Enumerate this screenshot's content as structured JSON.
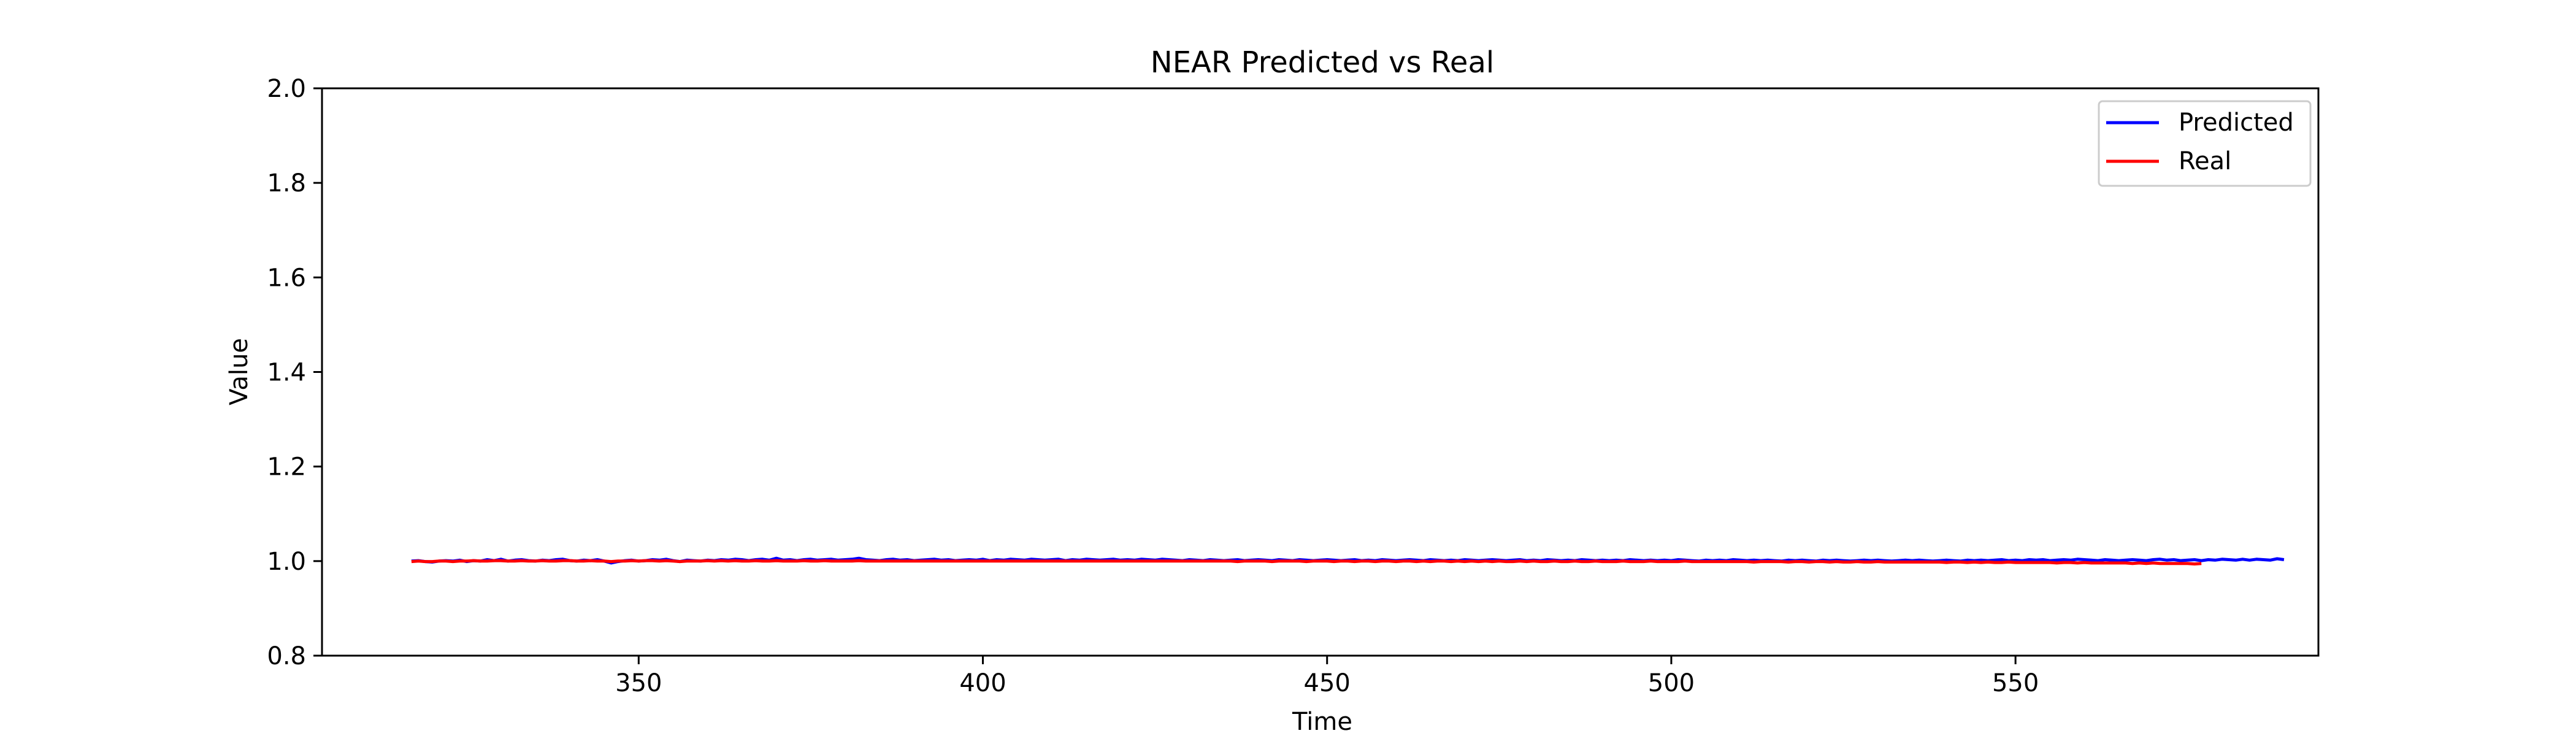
{
  "chart_data": {
    "type": "line",
    "title": "NEAR Predicted vs Real",
    "xlabel": "Time",
    "ylabel": "Value",
    "xlim": [
      304,
      594
    ],
    "ylim": [
      0.8,
      2.0
    ],
    "x_ticks": [
      350,
      400,
      450,
      500,
      550
    ],
    "y_ticks": [
      0.8,
      1.0,
      1.2,
      1.4,
      1.6,
      1.8,
      2.0
    ],
    "y_tick_labels": [
      "0.8",
      "1.0",
      "1.2",
      "1.4",
      "1.6",
      "1.8",
      "2.0"
    ],
    "x_tick_labels": [
      "350",
      "400",
      "450",
      "500",
      "550"
    ],
    "grid": false,
    "legend_position": "top-right",
    "x_range": {
      "start": 317,
      "end": 580,
      "step": 1
    },
    "series": [
      {
        "name": "Predicted",
        "color": "#0000ff",
        "values": [
          1.0,
          1.001,
          0.999,
          0.998,
          1.0,
          1.001,
          1.0,
          1.002,
          0.999,
          1.001,
          1.0,
          1.003,
          1.001,
          1.004,
          1.0,
          1.002,
          1.003,
          1.001,
          1.0,
          1.002,
          1.001,
          1.003,
          1.004,
          1.001,
          1.0,
          1.002,
          1.001,
          1.003,
          1.0,
          0.996,
          0.999,
          1.001,
          1.002,
          1.0,
          1.001,
          1.003,
          1.002,
          1.004,
          1.001,
          0.999,
          1.002,
          1.001,
          1.0,
          1.002,
          1.001,
          1.003,
          1.002,
          1.004,
          1.003,
          1.001,
          1.003,
          1.004,
          1.002,
          1.006,
          1.002,
          1.003,
          1.001,
          1.003,
          1.004,
          1.002,
          1.003,
          1.004,
          1.002,
          1.003,
          1.004,
          1.006,
          1.003,
          1.002,
          1.001,
          1.003,
          1.004,
          1.002,
          1.003,
          1.001,
          1.002,
          1.003,
          1.004,
          1.002,
          1.003,
          1.001,
          1.002,
          1.003,
          1.002,
          1.004,
          1.001,
          1.003,
          1.002,
          1.004,
          1.003,
          1.002,
          1.004,
          1.003,
          1.002,
          1.003,
          1.004,
          1.001,
          1.003,
          1.002,
          1.004,
          1.003,
          1.002,
          1.003,
          1.004,
          1.002,
          1.003,
          1.002,
          1.004,
          1.003,
          1.002,
          1.004,
          1.003,
          1.002,
          1.001,
          1.003,
          1.002,
          1.001,
          1.003,
          1.002,
          1.001,
          1.002,
          1.003,
          1.001,
          1.002,
          1.003,
          1.002,
          1.001,
          1.003,
          1.002,
          1.001,
          1.003,
          1.002,
          1.001,
          1.002,
          1.003,
          1.002,
          1.001,
          1.002,
          1.003,
          1.001,
          1.002,
          1.001,
          1.003,
          1.002,
          1.001,
          1.002,
          1.003,
          1.002,
          1.001,
          1.003,
          1.002,
          1.001,
          1.002,
          1.001,
          1.003,
          1.002,
          1.001,
          1.002,
          1.003,
          1.002,
          1.001,
          1.002,
          1.003,
          1.001,
          1.002,
          1.001,
          1.003,
          1.002,
          1.001,
          1.002,
          1.001,
          1.003,
          1.002,
          1.001,
          1.002,
          1.001,
          1.002,
          1.001,
          1.003,
          1.002,
          1.001,
          1.002,
          1.001,
          1.002,
          1.001,
          1.003,
          1.002,
          1.001,
          1.0,
          1.002,
          1.001,
          1.002,
          1.001,
          1.003,
          1.002,
          1.001,
          1.002,
          1.001,
          1.002,
          1.001,
          1.0,
          1.002,
          1.001,
          1.002,
          1.001,
          1.0,
          1.002,
          1.001,
          1.002,
          1.001,
          1.0,
          1.001,
          1.002,
          1.001,
          1.002,
          1.001,
          1.0,
          1.001,
          1.002,
          1.001,
          1.002,
          1.001,
          1.0,
          1.001,
          1.002,
          1.001,
          1.0,
          1.002,
          1.001,
          1.002,
          1.001,
          1.002,
          1.003,
          1.001,
          1.002,
          1.001,
          1.003,
          1.002,
          1.003,
          1.001,
          1.002,
          1.003,
          1.002,
          1.004,
          1.003,
          1.002,
          1.001,
          1.003,
          1.002,
          1.001,
          1.002,
          1.003,
          1.002,
          1.001,
          1.003,
          1.004,
          1.002,
          1.003,
          1.001,
          1.002,
          1.003,
          1.001,
          1.003,
          1.002,
          1.004,
          1.003,
          1.002,
          1.004,
          1.002,
          1.004,
          1.003,
          1.002,
          1.005,
          1.003
        ]
      },
      {
        "name": "Real",
        "color": "#ff0000",
        "values": [
          0.999,
          1.0,
          0.999,
          0.999,
          1.0,
          1.0,
          0.999,
          1.0,
          1.0,
          1.001,
          1.0,
          1.0,
          1.001,
          1.001,
          1.0,
          1.0,
          1.001,
          1.0,
          1.0,
          1.001,
          1.0,
          1.0,
          1.001,
          1.001,
          1.0,
          1.0,
          1.001,
          1.0,
          1.0,
          0.999,
          1.0,
          1.0,
          1.001,
          1.0,
          1.001,
          1.001,
          1.0,
          1.001,
          1.0,
          0.999,
          1.0,
          1.0,
          1.0,
          1.001,
          1.0,
          1.001,
          1.0,
          1.001,
          1.0,
          1.0,
          1.001,
          1.0,
          1.0,
          1.001,
          1.0,
          1.0,
          1.0,
          1.001,
          1.0,
          1.0,
          1.001,
          1.0,
          1.0,
          1.0,
          1.0,
          1.001,
          1.0,
          1.0,
          1.0,
          1.0,
          1.0,
          1.0,
          1.0,
          1.0,
          1.0,
          1.0,
          1.0,
          1.0,
          1.0,
          1.0,
          1.0,
          1.0,
          1.0,
          1.0,
          1.0,
          1.0,
          1.0,
          1.0,
          1.0,
          1.0,
          1.0,
          1.0,
          1.0,
          1.0,
          1.0,
          1.0,
          1.0,
          1.0,
          1.0,
          1.0,
          1.0,
          1.0,
          1.0,
          1.0,
          1.0,
          1.0,
          1.0,
          1.0,
          1.0,
          1.0,
          1.0,
          1.0,
          1.0,
          1.0,
          1.0,
          1.0,
          1.0,
          1.0,
          1.0,
          1.0,
          0.999,
          1.0,
          1.0,
          1.0,
          1.0,
          0.999,
          1.0,
          1.0,
          1.0,
          1.0,
          0.999,
          1.0,
          1.0,
          1.0,
          0.999,
          1.0,
          1.0,
          0.999,
          1.0,
          1.0,
          0.999,
          1.0,
          1.0,
          0.999,
          1.0,
          1.0,
          0.999,
          1.0,
          0.999,
          1.0,
          1.0,
          0.999,
          1.0,
          0.999,
          1.0,
          0.999,
          1.0,
          0.999,
          1.0,
          0.999,
          0.999,
          1.0,
          0.999,
          1.0,
          0.999,
          0.999,
          1.0,
          0.999,
          0.999,
          1.0,
          0.999,
          0.999,
          1.0,
          0.999,
          0.999,
          0.999,
          1.0,
          0.999,
          0.999,
          0.999,
          1.0,
          0.999,
          0.999,
          0.999,
          0.999,
          1.0,
          0.999,
          0.999,
          0.999,
          0.999,
          0.999,
          0.999,
          0.999,
          0.999,
          0.999,
          0.998,
          0.999,
          0.999,
          0.999,
          0.999,
          0.998,
          0.999,
          0.999,
          0.998,
          0.999,
          0.999,
          0.998,
          0.999,
          0.998,
          0.998,
          0.999,
          0.998,
          0.998,
          0.999,
          0.998,
          0.998,
          0.998,
          0.998,
          0.998,
          0.998,
          0.998,
          0.998,
          0.998,
          0.997,
          0.998,
          0.998,
          0.997,
          0.998,
          0.997,
          0.998,
          0.997,
          0.997,
          0.998,
          0.997,
          0.997,
          0.997,
          0.997,
          0.997,
          0.997,
          0.996,
          0.997,
          0.997,
          0.996,
          0.997,
          0.996,
          0.996,
          0.996,
          0.996,
          0.996,
          0.996,
          0.995,
          0.996,
          0.995,
          0.996,
          0.995,
          0.995,
          0.995,
          0.995,
          0.995,
          0.994,
          0.995
        ]
      }
    ]
  }
}
